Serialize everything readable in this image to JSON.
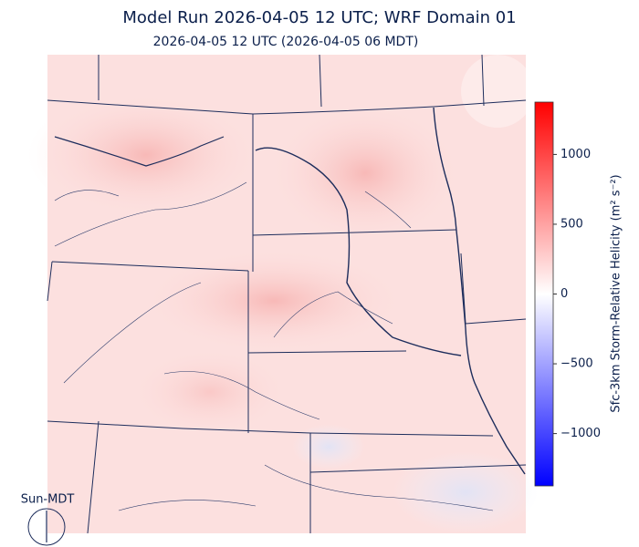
{
  "title": "Model Run 2026-04-05 12 UTC; WRF Domain 01",
  "subtitle": "2026-04-05 12 UTC  (2026-04-05 06 MDT)",
  "clock_label": "Sun-MDT",
  "colorbar": {
    "label": "Sfc-3km Storm-Relative Helicity (m² s⁻²)",
    "lim": [
      -1375,
      1375
    ],
    "ticks": [
      {
        "value": -1000,
        "label": "−1000"
      },
      {
        "value": -500,
        "label": "−500"
      },
      0,
      500,
      1000
    ],
    "colors": [
      "#0000ff",
      "#ffffff",
      "#ff0000"
    ]
  }
}
